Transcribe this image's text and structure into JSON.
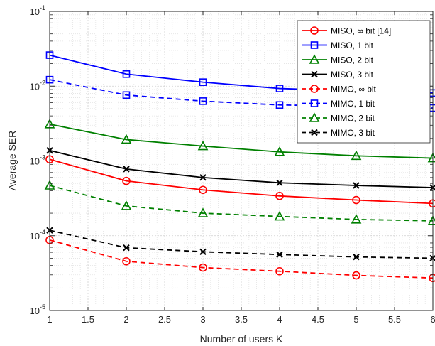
{
  "chart_data": {
    "type": "line",
    "xlabel": "Number of users K",
    "ylabel": "Average SER",
    "xlim": [
      1,
      6
    ],
    "ylim": [
      1e-05,
      0.1
    ],
    "yscale": "log",
    "grid": true,
    "minor_grid": true,
    "legend_position": "top-right",
    "x": [
      1,
      2,
      3,
      4,
      5,
      6
    ],
    "x_ticks": [
      "1",
      "1.5",
      "2",
      "2.5",
      "3",
      "3.5",
      "4",
      "4.5",
      "5",
      "5.5",
      "6"
    ],
    "series": [
      {
        "name": "MISO, ∞ bit [14]",
        "color": "#ff0000",
        "dash": "solid",
        "marker": "circle",
        "values": [
          0.00105,
          0.00054,
          0.00041,
          0.00034,
          0.0003,
          0.00027
        ]
      },
      {
        "name": "MISO, 1 bit",
        "color": "#0000ff",
        "dash": "solid",
        "marker": "square",
        "values": [
          0.026,
          0.0145,
          0.0113,
          0.0093,
          0.0086,
          0.0081
        ]
      },
      {
        "name": "MISO, 2 bit",
        "color": "#008000",
        "dash": "solid",
        "marker": "triangle",
        "values": [
          0.0031,
          0.00193,
          0.00158,
          0.00132,
          0.00117,
          0.00109
        ]
      },
      {
        "name": "MISO, 3 bit",
        "color": "#000000",
        "dash": "solid",
        "marker": "x",
        "values": [
          0.00138,
          0.00078,
          0.0006,
          0.00051,
          0.00047,
          0.00044
        ]
      },
      {
        "name": "MIMO, ∞ bit",
        "color": "#ff0000",
        "dash": "dashed",
        "marker": "circle",
        "values": [
          8.75e-05,
          4.55e-05,
          3.75e-05,
          3.35e-05,
          2.95e-05,
          2.72e-05
        ]
      },
      {
        "name": "MIMO, 1 bit",
        "color": "#0000ff",
        "dash": "dashed",
        "marker": "square",
        "values": [
          0.0122,
          0.0076,
          0.0063,
          0.0056,
          0.0054,
          0.0051
        ]
      },
      {
        "name": "MIMO, 2 bit",
        "color": "#008000",
        "dash": "dashed",
        "marker": "triangle",
        "values": [
          0.00047,
          0.00025,
          0.0002,
          0.000181,
          0.000165,
          0.000158
        ]
      },
      {
        "name": "MIMO, 3 bit",
        "color": "#000000",
        "dash": "dashed",
        "marker": "x",
        "values": [
          0.000118,
          6.9e-05,
          6.1e-05,
          5.6e-05,
          5.2e-05,
          5e-05
        ]
      }
    ]
  }
}
